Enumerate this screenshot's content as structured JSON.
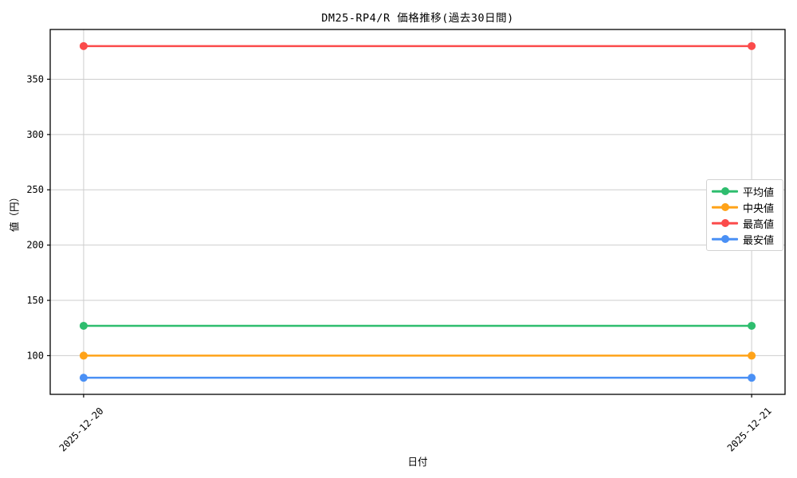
{
  "chart_data": {
    "type": "line",
    "title": "DM25-RP4/R 価格推移(過去30日間)",
    "xlabel": "日付",
    "ylabel": "値（円）",
    "x": [
      "2025-12-20",
      "2025-12-21"
    ],
    "series": [
      {
        "key": "average",
        "name": "平均値",
        "color": "#2ebd6e",
        "values": [
          127,
          127
        ]
      },
      {
        "key": "median",
        "name": "中央値",
        "color": "#ffa319",
        "values": [
          100,
          100
        ]
      },
      {
        "key": "max",
        "name": "最高値",
        "color": "#fb4b4b",
        "values": [
          380,
          380
        ]
      },
      {
        "key": "min",
        "name": "最安値",
        "color": "#4a90f5",
        "values": [
          80,
          80
        ]
      }
    ],
    "ylim": [
      65,
      395
    ],
    "yticks": [
      100,
      150,
      200,
      250,
      300,
      350
    ],
    "grid": true,
    "grid_color": "#cdcdcd",
    "axis_color": "#000000",
    "legend_position": "right"
  }
}
